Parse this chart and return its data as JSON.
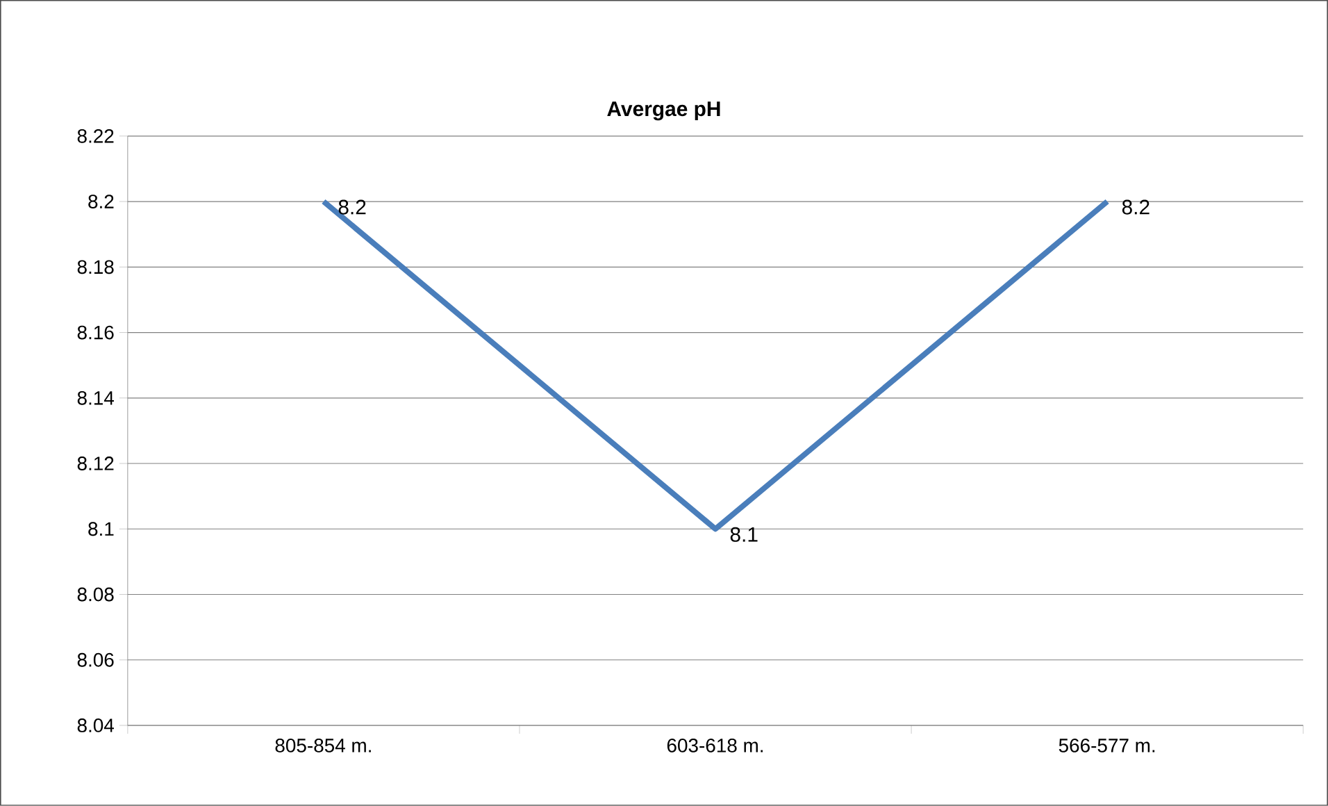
{
  "chart_data": {
    "type": "line",
    "title": "Avergae pH",
    "categories": [
      "805-854 m.",
      "603-618 m.",
      "566-577 m."
    ],
    "values": [
      8.2,
      8.1,
      8.2
    ],
    "color": "#4a7ebb",
    "ylim": [
      8.04,
      8.22
    ],
    "yticks": [
      8.04,
      8.06,
      8.08,
      8.1,
      8.12,
      8.14,
      8.16,
      8.18,
      8.2,
      8.22
    ],
    "grid": "y",
    "data_labels": true,
    "marker": "none",
    "line_style": "solid"
  }
}
